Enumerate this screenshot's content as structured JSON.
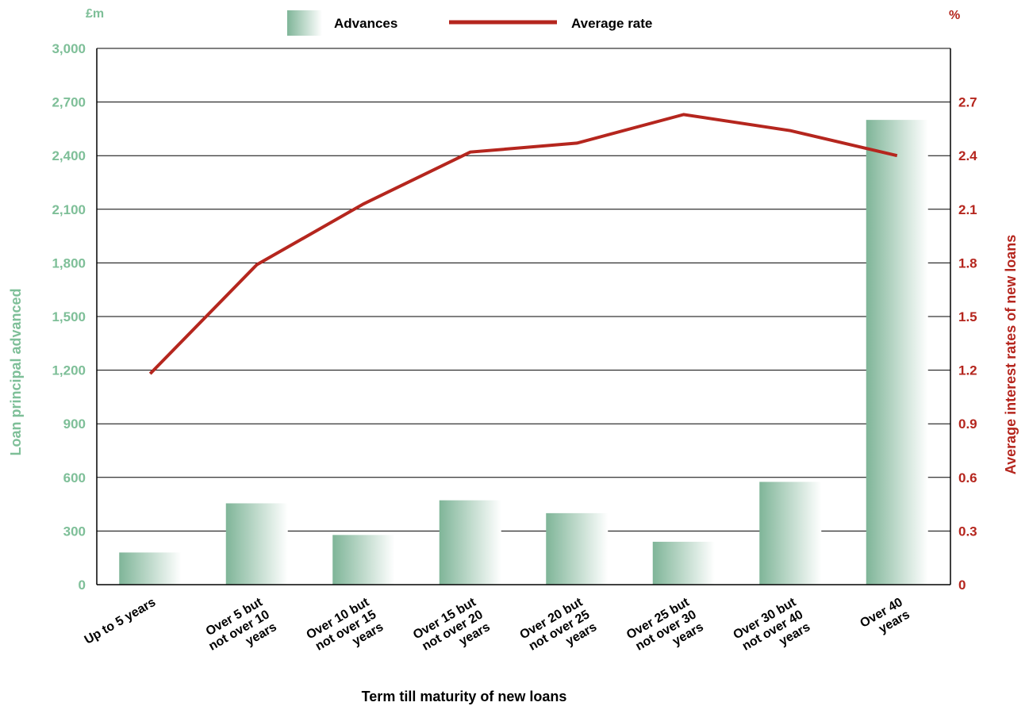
{
  "chart_data": {
    "type": "bar",
    "categories": [
      [
        "Up to 5 years"
      ],
      [
        "Over 5 but",
        "not over 10",
        "years"
      ],
      [
        "Over 10 but",
        "not over 15",
        "years"
      ],
      [
        "Over 15 but",
        "not over 20",
        "years"
      ],
      [
        "Over 20 but",
        "not over 25",
        "years"
      ],
      [
        "Over 25 but",
        "not over 30",
        "years"
      ],
      [
        "Over 30 but",
        "not over 40",
        "years"
      ],
      [
        "Over 40",
        "years"
      ]
    ],
    "series": [
      {
        "name": "Advances",
        "type": "bar",
        "axis": "left",
        "values": [
          180,
          455,
          278,
          472,
          400,
          240,
          575,
          2600
        ]
      },
      {
        "name": "Average rate",
        "type": "line",
        "axis": "right",
        "values": [
          1.18,
          1.79,
          2.13,
          2.42,
          2.47,
          2.63,
          2.54,
          2.4
        ]
      }
    ],
    "xlabel": "Term till maturity of new loans",
    "ylabel_left": "Loan principal advanced",
    "ylabel_right": "Average interest rates of new loans",
    "unit_left": "£m",
    "unit_right": "%",
    "ylim_left": [
      0,
      3000
    ],
    "ylim_right": [
      0,
      3.0
    ],
    "yticks_left": [
      "0",
      "300",
      "600",
      "900",
      "1,200",
      "1,500",
      "1,800",
      "2,100",
      "2,400",
      "2,700",
      "3,000"
    ],
    "yticks_right": [
      "0",
      "0.3",
      "0.6",
      "0.9",
      "1.2",
      "1.5",
      "1.8",
      "2.1",
      "2.4",
      "2.7"
    ],
    "grid": true,
    "legend_position": "top-center",
    "colors": {
      "bar_dark": "#7fb598",
      "bar_light": "#ffffff",
      "line": "#b5261e",
      "left_axis_text": "#7ebf98",
      "right_axis_text": "#b5261e",
      "grid": "#000000"
    }
  }
}
